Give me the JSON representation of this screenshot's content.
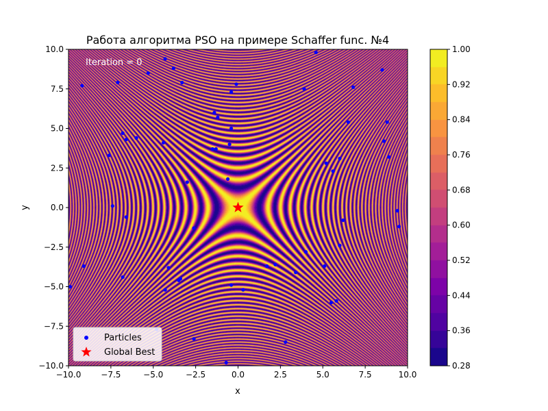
{
  "chart_data": {
    "type": "heatmap",
    "title": "Работа алгоритма PSO на примере Schaffer func. №4",
    "xlabel": "x",
    "ylabel": "y",
    "xlim": [
      -10,
      10
    ],
    "ylim": [
      -10,
      10
    ],
    "x_ticks": [
      "−10.0",
      "−7.5",
      "−5.0",
      "−2.5",
      "0.0",
      "2.5",
      "5.0",
      "7.5",
      "10.0"
    ],
    "y_ticks": [
      "−10.0",
      "−7.5",
      "−5.0",
      "−2.5",
      "0.0",
      "2.5",
      "5.0",
      "7.5",
      "10.0"
    ],
    "annotation": "Iteration = 0",
    "colormap": "plasma",
    "colorbar": {
      "min": 0.28,
      "max": 1.0,
      "ticks": [
        "0.28",
        "0.36",
        "0.44",
        "0.52",
        "0.60",
        "0.68",
        "0.76",
        "0.84",
        "0.92",
        "1.00"
      ]
    },
    "legend": {
      "placement": "lower-left",
      "entries": [
        "Particles",
        "Global Best"
      ]
    },
    "particle_color": "#0000ff",
    "global_best_color": "#ff0000",
    "particles": [
      [
        4.6,
        9.8
      ],
      [
        -4.3,
        9.4
      ],
      [
        -3.8,
        8.8
      ],
      [
        -5.3,
        8.5
      ],
      [
        8.5,
        8.7
      ],
      [
        -7.1,
        7.9
      ],
      [
        -3.3,
        7.9
      ],
      [
        -9.2,
        7.7
      ],
      [
        -0.1,
        7.8
      ],
      [
        3.9,
        7.5
      ],
      [
        6.8,
        7.6
      ],
      [
        -0.4,
        7.3
      ],
      [
        -1.4,
        6.0
      ],
      [
        -1.2,
        5.7
      ],
      [
        6.5,
        5.4
      ],
      [
        8.8,
        5.4
      ],
      [
        -0.4,
        5.0
      ],
      [
        -6.8,
        4.7
      ],
      [
        -6.6,
        4.3
      ],
      [
        -6.0,
        4.4
      ],
      [
        8.6,
        4.2
      ],
      [
        -4.4,
        4.1
      ],
      [
        -0.5,
        4.0
      ],
      [
        -1.5,
        3.7
      ],
      [
        -1.3,
        3.7
      ],
      [
        -7.6,
        3.3
      ],
      [
        8.9,
        3.2
      ],
      [
        6.0,
        3.1
      ],
      [
        5.2,
        2.8
      ],
      [
        5.6,
        2.3
      ],
      [
        -3.0,
        1.6
      ],
      [
        -0.6,
        1.8
      ],
      [
        -7.4,
        0.1
      ],
      [
        9.4,
        -0.2
      ],
      [
        -6.6,
        -0.6
      ],
      [
        6.2,
        -0.8
      ],
      [
        9.5,
        -1.2
      ],
      [
        -2.6,
        -1.3
      ],
      [
        6.0,
        -2.4
      ],
      [
        4.0,
        -2.8
      ],
      [
        -9.1,
        -3.7
      ],
      [
        1.7,
        -3.7
      ],
      [
        2.2,
        -3.6
      ],
      [
        5.1,
        -3.7
      ],
      [
        -4.1,
        -3.8
      ],
      [
        3.4,
        -4.1
      ],
      [
        -6.8,
        -4.4
      ],
      [
        -3.4,
        -4.5
      ],
      [
        -3.5,
        -4.6
      ],
      [
        -0.4,
        -4.9
      ],
      [
        -9.9,
        -5.0
      ],
      [
        -4.3,
        -5.2
      ],
      [
        0.3,
        -5.2
      ],
      [
        5.8,
        -5.9
      ],
      [
        5.5,
        -6.0
      ],
      [
        -4.8,
        -7.7
      ],
      [
        -2.6,
        -8.3
      ],
      [
        2.8,
        -8.5
      ],
      [
        -0.7,
        -9.8
      ]
    ],
    "global_best": [
      0.0,
      0.0
    ]
  }
}
